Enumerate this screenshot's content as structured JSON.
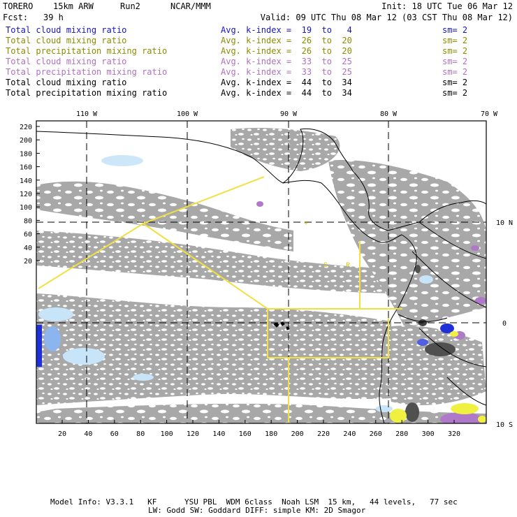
{
  "header": {
    "model": "TORERO",
    "resolution": "15km ARW",
    "run": "Run2",
    "org": "NCAR/MMM",
    "init": "Init: 18 UTC Tue 06 Mar 12",
    "fcst_label": "Fcst:",
    "fcst_value": "39 h",
    "valid": "Valid: 09 UTC Thu 08 Mar 12 (03 CST Thu 08 Mar 12)"
  },
  "legend_rows": [
    {
      "name": "Total cloud mixing ratio",
      "kindex": "Avg. k-index =  19  to   4",
      "sm": "sm= 2",
      "color": "#1515c8"
    },
    {
      "name": "Total cloud mixing ratio",
      "kindex": "Avg. k-index =  26  to  20",
      "sm": "sm= 2",
      "color": "#8c8c00"
    },
    {
      "name": "Total precipitation mixing ratio",
      "kindex": "Avg. k-index =  26  to  20",
      "sm": "sm= 2",
      "color": "#8c8c00"
    },
    {
      "name": "Total cloud mixing ratio",
      "kindex": "Avg. k-index =  33  to  25",
      "sm": "sm= 2",
      "color": "#b070c0"
    },
    {
      "name": "Total precipitation mixing ratio",
      "kindex": "Avg. k-index =  33  to  25",
      "sm": "sm= 2",
      "color": "#b070c0"
    },
    {
      "name": "Total cloud mixing ratio",
      "kindex": "Avg. k-index =  44  to  34",
      "sm": "sm= 2",
      "color": "#000000"
    },
    {
      "name": "Total precipitation mixing ratio",
      "kindex": "Avg. k-index =  44  to  34",
      "sm": "sm= 2",
      "color": "#000000"
    }
  ],
  "map": {
    "lon_labels": [
      "110 W",
      "100 W",
      "90 W",
      "80 W",
      "70 W"
    ],
    "lat_labels": [
      "10 N",
      "0",
      "10 S"
    ],
    "y_ticks": [
      "220",
      "200",
      "180",
      "160",
      "140",
      "120",
      "100",
      "80",
      "60",
      "40",
      "20"
    ],
    "x_ticks": [
      "20",
      "40",
      "60",
      "80",
      "100",
      "120",
      "140",
      "160",
      "180",
      "200",
      "220",
      "240",
      "260",
      "280",
      "300",
      "320"
    ],
    "colors": {
      "cloud_gray": "#a8a8a8",
      "dark_gray": "#505050",
      "light_blue": "#c8e4f8",
      "blue": "#2030d8",
      "purple": "#b078c8",
      "yellow": "#f0f040",
      "domain_line": "#f0e040"
    }
  },
  "footer": {
    "line1": "Model Info: V3.3.1   KF      YSU PBL  WDM 6class  Noah LSM  15 km,   44 levels,   77 sec",
    "line2": "LW: Godd SW: Goddard DIFF: simple KM: 2D Smagor"
  }
}
